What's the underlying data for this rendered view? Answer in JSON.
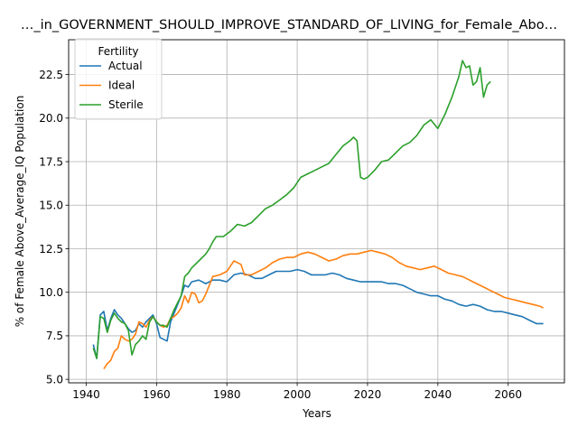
{
  "chart_data": {
    "type": "line",
    "title": "…_in_GOVERNMENT_SHOULD_IMPROVE_STANDARD_OF_LIVING_for_Female_Abo…",
    "xlabel": "Years",
    "ylabel": "% of Female Above_Average_IQ Population",
    "xlim": [
      1935,
      2076
    ],
    "ylim": [
      4.8,
      24.5
    ],
    "xticks": [
      1940,
      1960,
      1980,
      2000,
      2020,
      2040,
      2060
    ],
    "yticks": [
      5.0,
      7.5,
      10.0,
      12.5,
      15.0,
      17.5,
      20.0,
      22.5
    ],
    "xtick_labels": [
      "1940",
      "1960",
      "1980",
      "2000",
      "2020",
      "2040",
      "2060"
    ],
    "ytick_labels": [
      "5.0",
      "7.5",
      "10.0",
      "12.5",
      "15.0",
      "17.5",
      "20.0",
      "22.5"
    ],
    "grid": true,
    "legend": {
      "title": "Fertility",
      "placement": "top-left"
    },
    "series": [
      {
        "name": "Actual",
        "color": "#1f77b4",
        "points": [
          [
            1942,
            7.0
          ],
          [
            1943,
            6.2
          ],
          [
            1944,
            8.7
          ],
          [
            1945,
            8.9
          ],
          [
            1946,
            7.8
          ],
          [
            1947,
            8.5
          ],
          [
            1948,
            9.0
          ],
          [
            1949,
            8.7
          ],
          [
            1950,
            8.5
          ],
          [
            1951,
            8.2
          ],
          [
            1952,
            7.9
          ],
          [
            1953,
            7.7
          ],
          [
            1954,
            7.8
          ],
          [
            1955,
            8.2
          ],
          [
            1956,
            8.0
          ],
          [
            1957,
            8.3
          ],
          [
            1958,
            8.5
          ],
          [
            1959,
            8.7
          ],
          [
            1960,
            8.2
          ],
          [
            1961,
            7.4
          ],
          [
            1962,
            7.3
          ],
          [
            1963,
            7.2
          ],
          [
            1964,
            8.3
          ],
          [
            1965,
            8.8
          ],
          [
            1966,
            9.3
          ],
          [
            1967,
            9.8
          ],
          [
            1968,
            10.4
          ],
          [
            1969,
            10.3
          ],
          [
            1970,
            10.6
          ],
          [
            1972,
            10.7
          ],
          [
            1974,
            10.5
          ],
          [
            1976,
            10.7
          ],
          [
            1978,
            10.7
          ],
          [
            1980,
            10.6
          ],
          [
            1982,
            11.0
          ],
          [
            1984,
            11.1
          ],
          [
            1986,
            11.0
          ],
          [
            1988,
            10.8
          ],
          [
            1990,
            10.8
          ],
          [
            1992,
            11.0
          ],
          [
            1994,
            11.2
          ],
          [
            1996,
            11.2
          ],
          [
            1998,
            11.2
          ],
          [
            2000,
            11.3
          ],
          [
            2002,
            11.2
          ],
          [
            2004,
            11.0
          ],
          [
            2006,
            11.0
          ],
          [
            2008,
            11.0
          ],
          [
            2010,
            11.1
          ],
          [
            2012,
            11.0
          ],
          [
            2014,
            10.8
          ],
          [
            2016,
            10.7
          ],
          [
            2018,
            10.6
          ],
          [
            2020,
            10.6
          ],
          [
            2022,
            10.6
          ],
          [
            2024,
            10.6
          ],
          [
            2026,
            10.5
          ],
          [
            2028,
            10.5
          ],
          [
            2030,
            10.4
          ],
          [
            2032,
            10.2
          ],
          [
            2034,
            10.0
          ],
          [
            2036,
            9.9
          ],
          [
            2038,
            9.8
          ],
          [
            2040,
            9.8
          ],
          [
            2042,
            9.6
          ],
          [
            2044,
            9.5
          ],
          [
            2046,
            9.3
          ],
          [
            2048,
            9.2
          ],
          [
            2050,
            9.3
          ],
          [
            2052,
            9.2
          ],
          [
            2054,
            9.0
          ],
          [
            2056,
            8.9
          ],
          [
            2058,
            8.9
          ],
          [
            2060,
            8.8
          ],
          [
            2062,
            8.7
          ],
          [
            2064,
            8.6
          ],
          [
            2066,
            8.4
          ],
          [
            2068,
            8.2
          ],
          [
            2070,
            8.2
          ]
        ]
      },
      {
        "name": "Ideal",
        "color": "#ff7f0e",
        "points": [
          [
            1945,
            5.6
          ],
          [
            1946,
            5.9
          ],
          [
            1947,
            6.1
          ],
          [
            1948,
            6.6
          ],
          [
            1949,
            6.8
          ],
          [
            1950,
            7.5
          ],
          [
            1951,
            7.3
          ],
          [
            1952,
            7.2
          ],
          [
            1953,
            7.3
          ],
          [
            1954,
            7.6
          ],
          [
            1955,
            8.3
          ],
          [
            1956,
            8.2
          ],
          [
            1957,
            8.0
          ],
          [
            1958,
            8.4
          ],
          [
            1959,
            8.6
          ],
          [
            1960,
            8.3
          ],
          [
            1961,
            8.1
          ],
          [
            1962,
            8.0
          ],
          [
            1963,
            8.1
          ],
          [
            1964,
            8.5
          ],
          [
            1965,
            8.6
          ],
          [
            1966,
            8.8
          ],
          [
            1967,
            9.1
          ],
          [
            1968,
            9.8
          ],
          [
            1969,
            9.4
          ],
          [
            1970,
            10.0
          ],
          [
            1971,
            9.9
          ],
          [
            1972,
            9.4
          ],
          [
            1973,
            9.5
          ],
          [
            1974,
            9.9
          ],
          [
            1976,
            10.9
          ],
          [
            1978,
            11.0
          ],
          [
            1980,
            11.2
          ],
          [
            1982,
            11.8
          ],
          [
            1984,
            11.6
          ],
          [
            1985,
            11.0
          ],
          [
            1987,
            11.0
          ],
          [
            1989,
            11.2
          ],
          [
            1991,
            11.4
          ],
          [
            1993,
            11.7
          ],
          [
            1995,
            11.9
          ],
          [
            1997,
            12.0
          ],
          [
            1999,
            12.0
          ],
          [
            2001,
            12.2
          ],
          [
            2003,
            12.3
          ],
          [
            2005,
            12.2
          ],
          [
            2007,
            12.0
          ],
          [
            2009,
            11.8
          ],
          [
            2011,
            11.9
          ],
          [
            2013,
            12.1
          ],
          [
            2015,
            12.2
          ],
          [
            2017,
            12.2
          ],
          [
            2019,
            12.3
          ],
          [
            2021,
            12.4
          ],
          [
            2023,
            12.3
          ],
          [
            2025,
            12.2
          ],
          [
            2027,
            12.0
          ],
          [
            2029,
            11.7
          ],
          [
            2031,
            11.5
          ],
          [
            2033,
            11.4
          ],
          [
            2035,
            11.3
          ],
          [
            2037,
            11.4
          ],
          [
            2039,
            11.5
          ],
          [
            2041,
            11.3
          ],
          [
            2043,
            11.1
          ],
          [
            2045,
            11.0
          ],
          [
            2047,
            10.9
          ],
          [
            2049,
            10.7
          ],
          [
            2051,
            10.5
          ],
          [
            2053,
            10.3
          ],
          [
            2055,
            10.1
          ],
          [
            2057,
            9.9
          ],
          [
            2059,
            9.7
          ],
          [
            2061,
            9.6
          ],
          [
            2063,
            9.5
          ],
          [
            2065,
            9.4
          ],
          [
            2067,
            9.3
          ],
          [
            2069,
            9.2
          ],
          [
            2070,
            9.1
          ]
        ]
      },
      {
        "name": "Sterile",
        "color": "#2ca02c",
        "points": [
          [
            1942,
            6.8
          ],
          [
            1943,
            6.2
          ],
          [
            1944,
            8.6
          ],
          [
            1945,
            8.5
          ],
          [
            1946,
            7.7
          ],
          [
            1947,
            8.4
          ],
          [
            1948,
            8.8
          ],
          [
            1949,
            8.5
          ],
          [
            1950,
            8.3
          ],
          [
            1951,
            8.2
          ],
          [
            1952,
            7.8
          ],
          [
            1953,
            6.4
          ],
          [
            1954,
            7.0
          ],
          [
            1955,
            7.2
          ],
          [
            1956,
            7.5
          ],
          [
            1957,
            7.3
          ],
          [
            1958,
            8.3
          ],
          [
            1959,
            8.6
          ],
          [
            1960,
            8.3
          ],
          [
            1961,
            8.1
          ],
          [
            1962,
            8.1
          ],
          [
            1963,
            8.0
          ],
          [
            1964,
            8.5
          ],
          [
            1965,
            9.0
          ],
          [
            1966,
            9.4
          ],
          [
            1967,
            9.8
          ],
          [
            1968,
            10.9
          ],
          [
            1969,
            11.1
          ],
          [
            1970,
            11.4
          ],
          [
            1972,
            11.8
          ],
          [
            1974,
            12.2
          ],
          [
            1975,
            12.5
          ],
          [
            1976,
            12.9
          ],
          [
            1977,
            13.2
          ],
          [
            1979,
            13.2
          ],
          [
            1981,
            13.5
          ],
          [
            1983,
            13.9
          ],
          [
            1985,
            13.8
          ],
          [
            1987,
            14.0
          ],
          [
            1989,
            14.4
          ],
          [
            1991,
            14.8
          ],
          [
            1993,
            15.0
          ],
          [
            1995,
            15.3
          ],
          [
            1997,
            15.6
          ],
          [
            1999,
            16.0
          ],
          [
            2001,
            16.6
          ],
          [
            2003,
            16.8
          ],
          [
            2005,
            17.0
          ],
          [
            2007,
            17.2
          ],
          [
            2009,
            17.4
          ],
          [
            2011,
            17.9
          ],
          [
            2013,
            18.4
          ],
          [
            2015,
            18.7
          ],
          [
            2016,
            18.9
          ],
          [
            2017,
            18.7
          ],
          [
            2018,
            16.6
          ],
          [
            2019,
            16.5
          ],
          [
            2020,
            16.6
          ],
          [
            2022,
            17.0
          ],
          [
            2024,
            17.5
          ],
          [
            2026,
            17.6
          ],
          [
            2028,
            18.0
          ],
          [
            2030,
            18.4
          ],
          [
            2032,
            18.6
          ],
          [
            2034,
            19.0
          ],
          [
            2036,
            19.6
          ],
          [
            2038,
            19.9
          ],
          [
            2040,
            19.4
          ],
          [
            2042,
            20.2
          ],
          [
            2044,
            21.2
          ],
          [
            2046,
            22.4
          ],
          [
            2047,
            23.3
          ],
          [
            2048,
            22.9
          ],
          [
            2049,
            23.0
          ],
          [
            2050,
            21.9
          ],
          [
            2051,
            22.1
          ],
          [
            2052,
            22.9
          ],
          [
            2053,
            21.2
          ],
          [
            2054,
            21.9
          ],
          [
            2055,
            22.1
          ]
        ]
      }
    ]
  }
}
